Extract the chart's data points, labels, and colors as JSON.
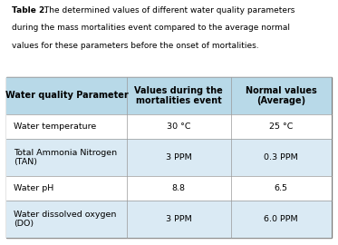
{
  "caption_bold": "Table 2.",
  "caption_line1": " The determined values of different water quality parameters",
  "caption_line2": "during the mass mortalities event compared to the average normal",
  "caption_line3": "values for these parameters before the onset of mortalities.",
  "header_bg": "#b8d9e8",
  "row_bg_alt": "#daeaf4",
  "row_bg_white": "#ffffff",
  "border_color": "#888888",
  "header_row": [
    "Water quality Parameter",
    "Values during the\nmortalities event",
    "Normal values\n(Average)"
  ],
  "rows": [
    [
      "Water temperature",
      "30 °C",
      "25 °C"
    ],
    [
      "Total Ammonia Nitrogen\n(TAN)",
      "3 PPM",
      "0.3 PPM"
    ],
    [
      "Water pH",
      "8.8",
      "6.5"
    ],
    [
      "Water dissolved oxygen\n(DO)",
      "3 PPM",
      "6.0 PPM"
    ]
  ],
  "figsize": [
    3.73,
    2.7
  ],
  "dpi": 100
}
